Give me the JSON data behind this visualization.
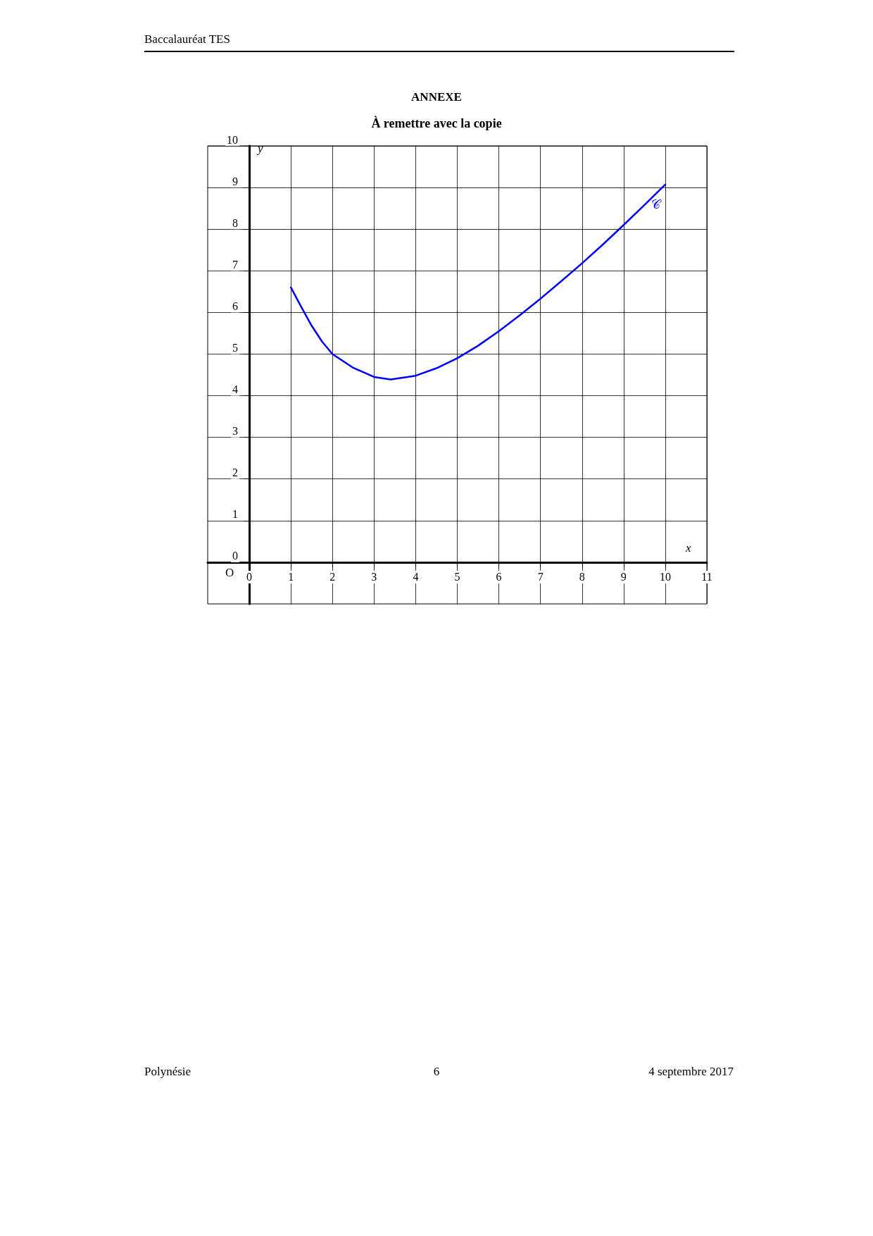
{
  "chart_data": {
    "type": "line",
    "title": "ANNEXE",
    "subtitle": "À remettre avec la copie",
    "xlabel": "x",
    "ylabel": "y",
    "x": [
      1,
      1.25,
      1.5,
      1.75,
      2,
      2.5,
      3,
      3.4,
      4,
      4.5,
      5,
      5.5,
      6,
      6.5,
      7,
      7.5,
      8,
      8.5,
      9,
      9.5,
      10
    ],
    "series": [
      {
        "name": "𝒞",
        "color": "#0000ff",
        "values": [
          6.6,
          6.13,
          5.68,
          5.3,
          5.0,
          4.67,
          4.45,
          4.39,
          4.48,
          4.66,
          4.9,
          5.2,
          5.55,
          5.93,
          6.33,
          6.75,
          7.18,
          7.63,
          8.1,
          8.58,
          9.07
        ]
      }
    ],
    "xlim": [
      -1,
      11
    ],
    "ylim": [
      -1,
      10
    ],
    "xticks": [
      0,
      1,
      2,
      3,
      4,
      5,
      6,
      7,
      8,
      9,
      10,
      11
    ],
    "yticks": [
      0,
      1,
      2,
      3,
      4,
      5,
      6,
      7,
      8,
      9,
      10
    ],
    "grid": true,
    "marker": "none",
    "line_style": "solid",
    "legend": false,
    "annotations": [
      "Baccalauréat TES",
      "Polynésie",
      "6",
      "4 septembre 2017",
      "O"
    ]
  }
}
